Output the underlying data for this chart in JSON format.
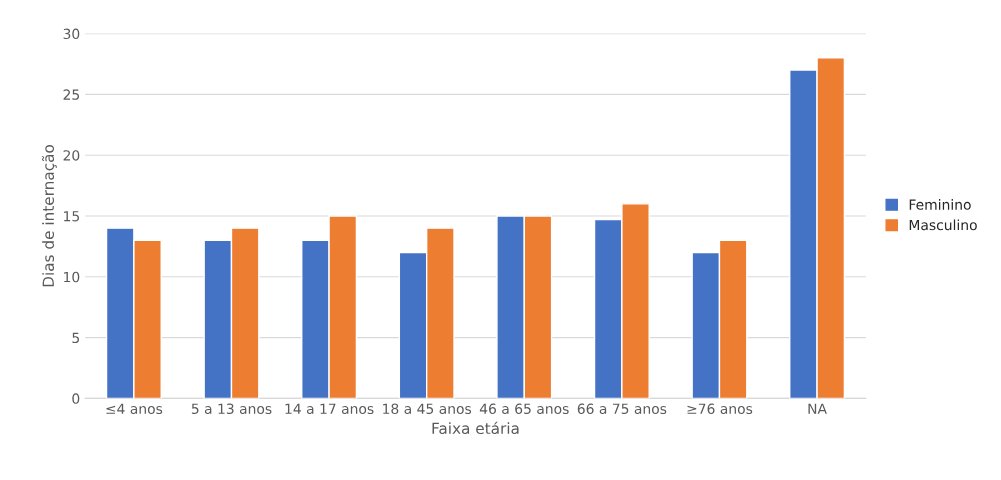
{
  "chart_data": {
    "type": "bar",
    "categories": [
      "≤4 anos",
      "5 a 13 anos",
      "14 a 17 anos",
      "18 a 45 anos",
      "46 a 65 anos",
      "66 a 75 anos",
      "≥76 anos",
      "NA"
    ],
    "series": [
      {
        "name": "Feminino",
        "color": "#4472c4",
        "values": [
          14,
          13,
          13,
          12,
          15,
          14.7,
          12,
          27
        ]
      },
      {
        "name": "Masculino",
        "color": "#ed7d31",
        "values": [
          13,
          14,
          15,
          14,
          15,
          16,
          13,
          28
        ]
      }
    ],
    "xlabel": "Faixa etária",
    "ylabel": "Dias de internação",
    "ylim": [
      0,
      30
    ],
    "yticks": [
      0,
      5,
      10,
      15,
      20,
      25,
      30
    ],
    "grid": "y",
    "legend": "right"
  }
}
